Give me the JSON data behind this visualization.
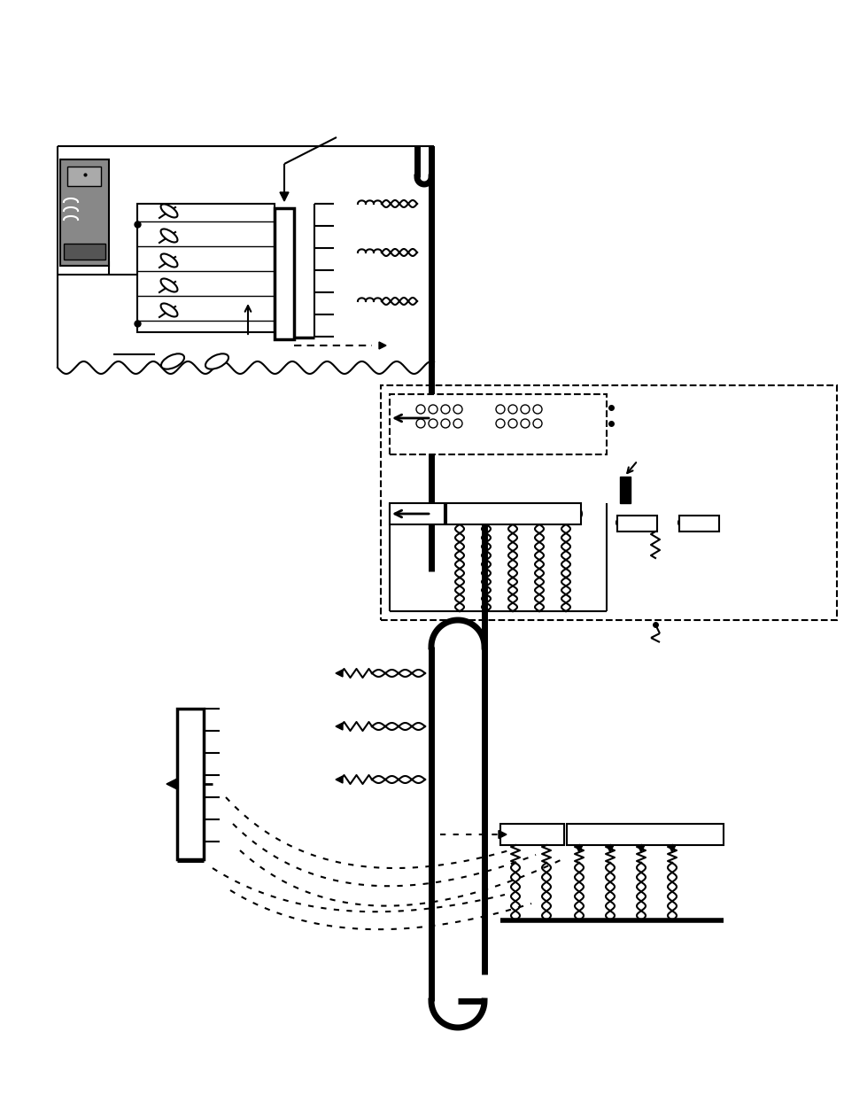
{
  "bg_color": "#ffffff",
  "fig_width": 9.54,
  "fig_height": 12.35,
  "dpi": 100
}
